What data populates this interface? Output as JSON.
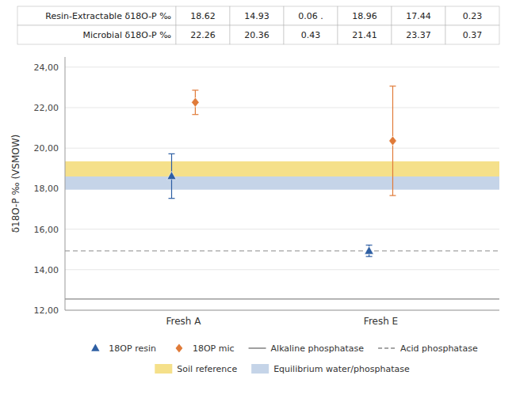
{
  "chart_data": {
    "type": "scatter",
    "table": [
      {
        "label": "Resin-Extractable δ18O-P ‰",
        "cells": [
          "18.62",
          "14.93",
          "0.06 .",
          "18.96",
          "17.44",
          "0.23"
        ]
      },
      {
        "label": "Microbial δ18O-P ‰",
        "cells": [
          "22.26",
          "20.36",
          "0.43",
          "21.41",
          "23.37",
          "0.37"
        ]
      }
    ],
    "categories": [
      "Fresh A",
      "Fresh E"
    ],
    "series": [
      {
        "name": "18OP resin",
        "color": "#2e5fa3",
        "marker": "triangle",
        "values": [
          18.62,
          14.93
        ],
        "errors": [
          1.1,
          0.28
        ]
      },
      {
        "name": "18OP mic",
        "color": "#e07b39",
        "marker": "diamond",
        "values": [
          22.26,
          20.36
        ],
        "errors": [
          0.6,
          2.7
        ]
      }
    ],
    "reference_lines": [
      {
        "name": "Alkaline phosphatase",
        "value": 12.55,
        "color": "#888888",
        "line_style": "solid"
      },
      {
        "name": "Acid phosphatase",
        "value": 14.93,
        "color": "#888888",
        "line_style": "dashed"
      }
    ],
    "bands": [
      {
        "name": "Soil reference",
        "from": 18.6,
        "to": 19.35,
        "color": "#f5e08a"
      },
      {
        "name": "Equilibrium water/phosphatase",
        "from": 17.95,
        "to": 18.6,
        "color": "#c5d4e8"
      }
    ],
    "y_label": "δ18O-P ‰ (VSMOW)",
    "ylim": [
      12.0,
      24.5
    ],
    "yticks": [
      {
        "value": 12.0,
        "label": "12,00"
      },
      {
        "value": 14.0,
        "label": "14,00"
      },
      {
        "value": 16.0,
        "label": "16,00"
      },
      {
        "value": 18.0,
        "label": "18,00"
      },
      {
        "value": 20.0,
        "label": "20,00"
      },
      {
        "value": 22.0,
        "label": "22,00"
      },
      {
        "value": 24.0,
        "label": "24,00"
      }
    ],
    "grid": true,
    "legend": "bottom"
  }
}
